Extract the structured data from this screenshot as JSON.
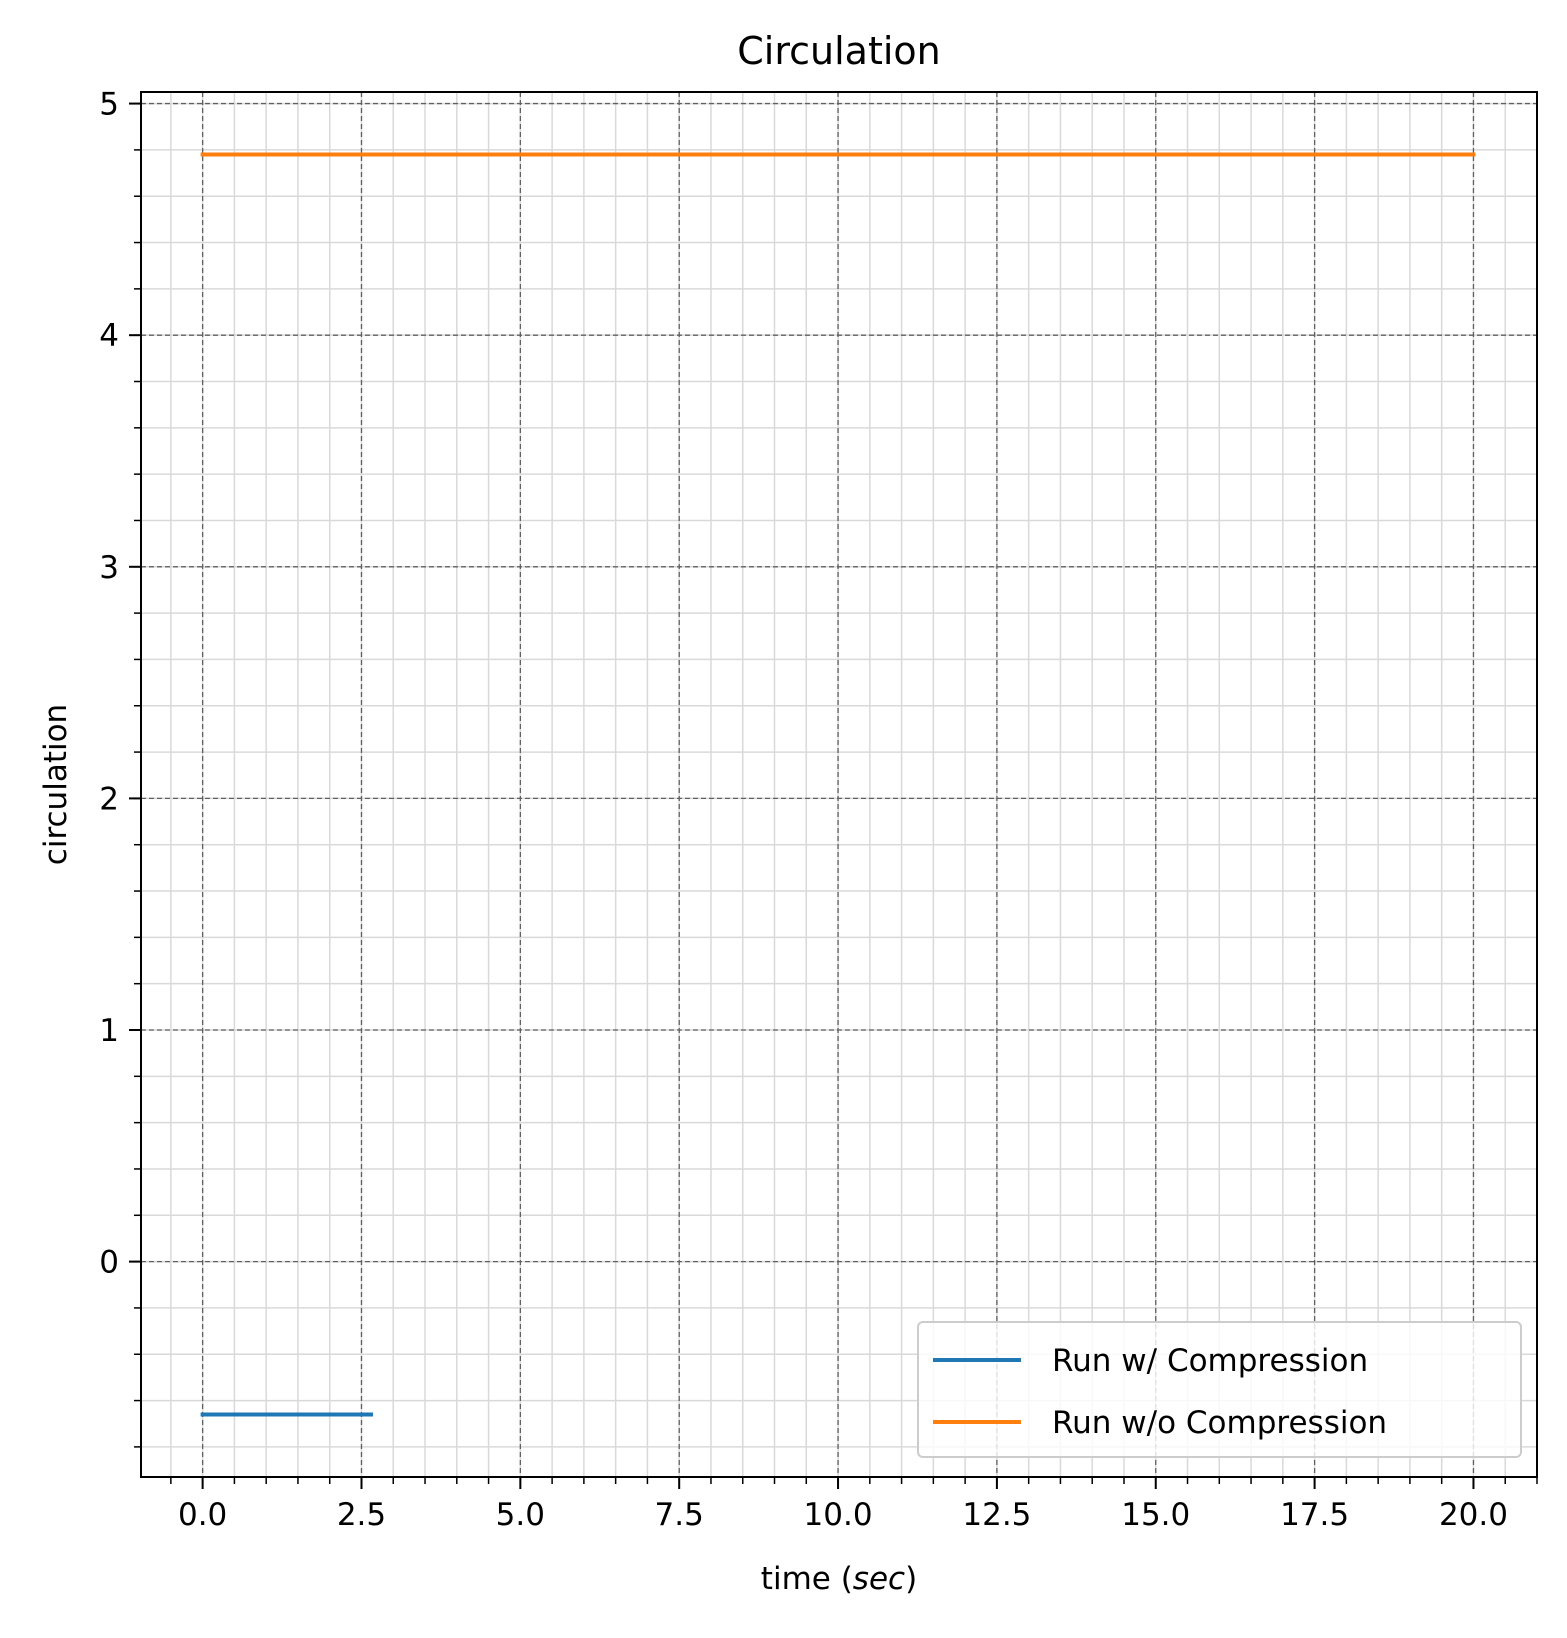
{
  "chart_data": {
    "type": "line",
    "title": "Circulation",
    "xlabel_prefix": "time (",
    "xlabel_italic": "sec",
    "xlabel_suffix": ")",
    "ylabel": "circulation",
    "xlim": [
      -0.97,
      21.0
    ],
    "ylim": [
      -0.93,
      5.05
    ],
    "x_ticks": [
      0.0,
      2.5,
      5.0,
      7.5,
      10.0,
      12.5,
      15.0,
      17.5,
      20.0
    ],
    "x_tick_labels": [
      "0.0",
      "2.5",
      "5.0",
      "7.5",
      "10.0",
      "12.5",
      "15.0",
      "17.5",
      "20.0"
    ],
    "y_ticks": [
      0,
      1,
      2,
      3,
      4,
      5
    ],
    "y_tick_labels": [
      "0",
      "1",
      "2",
      "3",
      "4",
      "5"
    ],
    "x_minor_step": 0.5,
    "y_minor_step": 0.2,
    "grid": {
      "major": true,
      "minor": true
    },
    "legend_position": "lower-right",
    "series": [
      {
        "name": "Run w/ Compression",
        "color": "#1f77b4",
        "x": [
          0.0,
          2.65
        ],
        "y": [
          -0.66,
          -0.66
        ]
      },
      {
        "name": "Run w/o Compression",
        "color": "#ff7f0e",
        "x": [
          0.0,
          20.0
        ],
        "y": [
          4.78,
          4.78
        ]
      }
    ]
  }
}
